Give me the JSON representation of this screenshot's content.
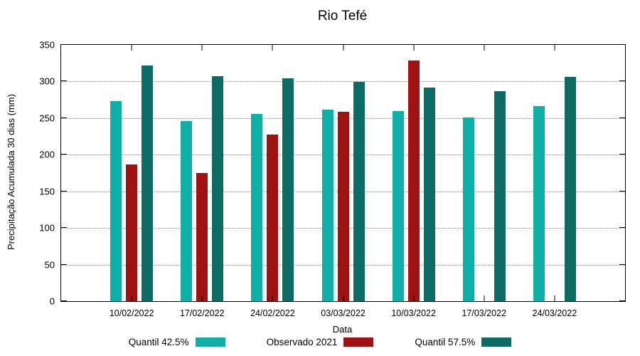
{
  "chart_data": {
    "type": "bar",
    "title": "Rio Tefé",
    "xlabel": "Data",
    "ylabel": "Precipitação Acumulada 30 dias (mm)",
    "ylim": [
      0,
      350
    ],
    "yticks": [
      0,
      50,
      100,
      150,
      200,
      250,
      300,
      350
    ],
    "grid": "horizontal-dotted",
    "legend_position": "bottom",
    "categories": [
      "10/02/2022",
      "17/02/2022",
      "24/02/2022",
      "03/03/2022",
      "10/03/2022",
      "17/03/2022",
      "24/03/2022"
    ],
    "series": [
      {
        "name": "Quantil 42.5%",
        "color": "#0FAEA6",
        "values": [
          273,
          246,
          256,
          262,
          260,
          251,
          266
        ]
      },
      {
        "name": "Observado 2021",
        "color": "#A01212",
        "values": [
          187,
          175,
          228,
          259,
          329,
          null,
          null
        ]
      },
      {
        "name": "Quantil 57.5%",
        "color": "#0E6A64",
        "values": [
          322,
          307,
          304,
          299,
          292,
          287,
          306
        ]
      }
    ]
  }
}
